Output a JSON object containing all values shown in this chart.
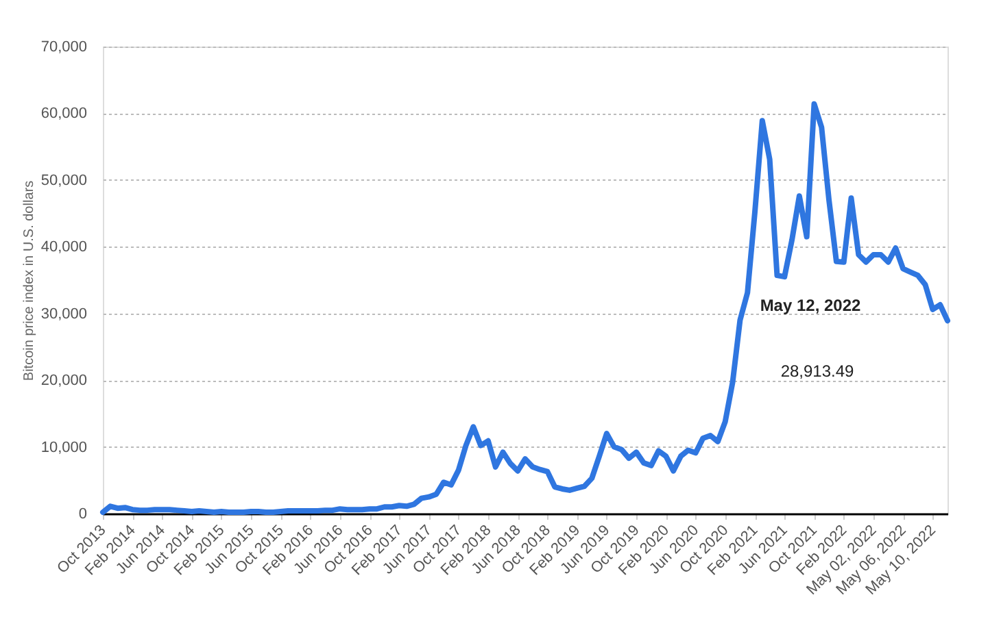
{
  "chart_data": {
    "type": "line",
    "ylabel": "Bitcoin price index in U.S. dollars",
    "categories": [
      "Oct 2013",
      null,
      null,
      null,
      "Feb 2014",
      null,
      null,
      null,
      "Jun 2014",
      null,
      null,
      null,
      "Oct 2014",
      null,
      null,
      null,
      "Feb 2015",
      null,
      null,
      null,
      "Jun 2015",
      null,
      null,
      null,
      "Oct 2015",
      null,
      null,
      null,
      "Feb 2016",
      null,
      null,
      null,
      "Jun 2016",
      null,
      null,
      null,
      "Oct 2016",
      null,
      null,
      null,
      "Feb 2017",
      null,
      null,
      null,
      "Jun 2017",
      null,
      null,
      null,
      "Oct 2017",
      null,
      null,
      null,
      "Feb 2018",
      null,
      null,
      null,
      "Jun 2018",
      null,
      null,
      null,
      "Oct 2018",
      null,
      null,
      null,
      "Feb 2019",
      null,
      null,
      null,
      "Jun 2019",
      null,
      null,
      null,
      "Oct 2019",
      null,
      null,
      null,
      "Feb 2020",
      null,
      null,
      null,
      "Jun 2020",
      null,
      null,
      null,
      "Oct 2020",
      null,
      null,
      null,
      "Feb 2021",
      null,
      null,
      null,
      "Jun 2021",
      null,
      null,
      null,
      "Oct 2021",
      null,
      null,
      null,
      "Feb 2022",
      null,
      null,
      null,
      "May 02, 2022",
      null,
      null,
      null,
      "May 06, 2022",
      null,
      null,
      null,
      "May 10, 2022",
      null,
      null
    ],
    "series": [
      {
        "color": "#2f76e0",
        "values": [
          200,
          1100,
          800,
          900,
          600,
          500,
          500,
          600,
          600,
          600,
          500,
          400,
          300,
          400,
          300,
          200,
          300,
          200,
          200,
          200,
          300,
          300,
          200,
          200,
          300,
          400,
          400,
          400,
          400,
          400,
          500,
          500,
          700,
          600,
          600,
          600,
          700,
          700,
          1000,
          1000,
          1200,
          1100,
          1400,
          2300,
          2500,
          2900,
          4700,
          4300,
          6500,
          10200,
          13000,
          10200,
          10900,
          7000,
          9200,
          7500,
          6400,
          8200,
          7000,
          6600,
          6300,
          4000,
          3700,
          3500,
          3800,
          4100,
          5300,
          8600,
          12000,
          10000,
          9600,
          8300,
          9200,
          7600,
          7200,
          9400,
          8600,
          6400,
          8600,
          9500,
          9100,
          11300,
          11700,
          10800,
          13800,
          19700,
          29000,
          33100,
          45200,
          58900,
          53100,
          35700,
          35500,
          41000,
          47600,
          41500,
          61400,
          57900,
          47000,
          37800,
          37700,
          47300,
          38800,
          37700,
          38800,
          38800,
          37700,
          39800,
          36700,
          36200,
          35700,
          34300,
          30600,
          31300,
          28913.49
        ]
      }
    ],
    "ylim": [
      0,
      70000
    ],
    "yticks": [
      0,
      {
        "value": 10000,
        "label": "10,000"
      },
      {
        "value": 20000,
        "label": "20,000"
      },
      {
        "value": 30000,
        "label": "30,000"
      },
      {
        "value": 40000,
        "label": "40,000"
      },
      {
        "value": 50000,
        "label": "50,000"
      },
      {
        "value": 60000,
        "label": "60,000"
      },
      {
        "value": 70000,
        "label": "70,000"
      }
    ],
    "grid": "y",
    "marker": "none",
    "line_style": "solid",
    "annotations": [
      "May 12, 2022",
      "28,913.49"
    ]
  }
}
